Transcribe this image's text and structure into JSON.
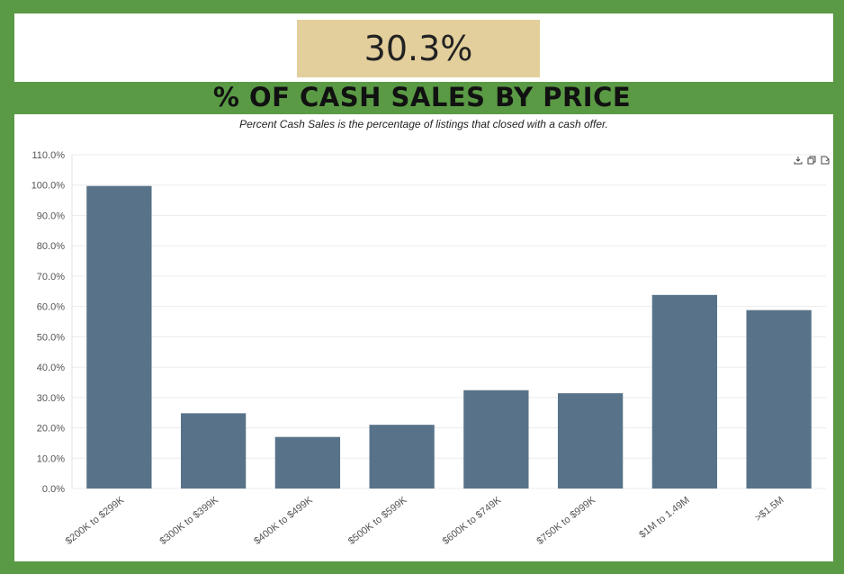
{
  "kpi": {
    "value": "30.3%"
  },
  "section_title": "% OF CASH SALES BY PRICE",
  "subtitle": "Percent Cash Sales is the percentage of listings that closed with a cash offer.",
  "colors": {
    "bar": "#587389",
    "background": "#5a9a45",
    "kpi_box": "#e3cf9c"
  },
  "toolbar": {
    "icons": [
      "download-icon",
      "copy-icon",
      "share-icon"
    ]
  },
  "chart_data": {
    "type": "bar",
    "categories": [
      "$200K to $299K",
      "$300K to $399K",
      "$400K to $499K",
      "$500K to $599K",
      "$600K to $749K",
      "$750K to $999K",
      "$1M to 1.49M",
      ">$1.5M"
    ],
    "values": [
      99.7,
      24.8,
      17.0,
      21.0,
      32.4,
      31.4,
      63.8,
      58.8
    ],
    "ylim": [
      0,
      110
    ],
    "yticks": [
      "0.0%",
      "10.0%",
      "20.0%",
      "30.0%",
      "40.0%",
      "50.0%",
      "60.0%",
      "70.0%",
      "80.0%",
      "90.0%",
      "100.0%",
      "110.0%"
    ],
    "grid": true
  }
}
